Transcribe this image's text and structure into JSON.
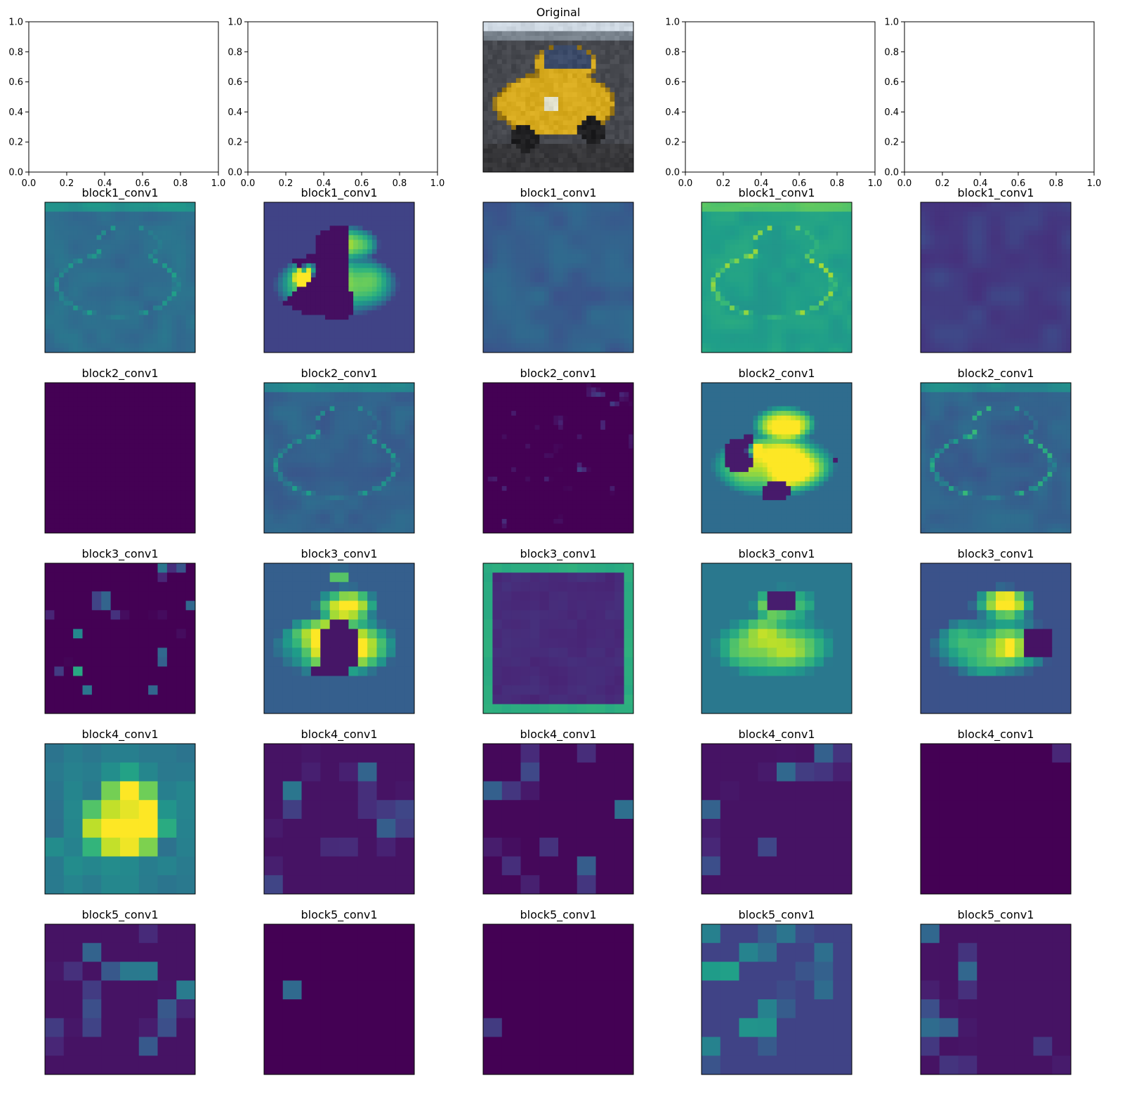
{
  "chart_data": {
    "type": "heatmap",
    "colormap": "viridis",
    "grid_columns": 5,
    "grid_rows": 6,
    "empty_axes": {
      "xlim": [
        0.0,
        1.0
      ],
      "ylim": [
        0.0,
        1.0
      ],
      "xticks": [
        "0.0",
        "0.2",
        "0.4",
        "0.6",
        "0.8",
        "1.0"
      ],
      "yticks": [
        "0.0",
        "0.2",
        "0.4",
        "0.6",
        "0.8",
        "1.0"
      ]
    },
    "original_title": "Original",
    "rows": [
      {
        "title": "block1_conv1",
        "panels": [
          {
            "pattern": "edges",
            "base": 0.35,
            "strength": 0.2,
            "hotspots": []
          },
          {
            "pattern": "blob",
            "base": 0.2,
            "strength": 0.9,
            "hotspots": [
              [
                0.25,
                0.5
              ],
              [
                0.3,
                0.45
              ]
            ]
          },
          {
            "pattern": "flat",
            "base": 0.3,
            "strength": 0.1,
            "hotspots": []
          },
          {
            "pattern": "edges",
            "base": 0.55,
            "strength": 0.3,
            "hotspots": []
          },
          {
            "pattern": "flat",
            "base": 0.18,
            "strength": 0.08,
            "hotspots": []
          }
        ]
      },
      {
        "title": "block2_conv1",
        "panels": [
          {
            "pattern": "flat",
            "base": 0.0,
            "strength": 0.0,
            "hotspots": []
          },
          {
            "pattern": "edges",
            "base": 0.3,
            "strength": 0.25,
            "hotspots": []
          },
          {
            "pattern": "sparse",
            "base": 0.0,
            "strength": 0.3,
            "hotspots": []
          },
          {
            "pattern": "blob",
            "base": 0.35,
            "strength": 0.8,
            "hotspots": [
              [
                0.35,
                0.45
              ],
              [
                0.6,
                0.3
              ]
            ]
          },
          {
            "pattern": "edges",
            "base": 0.3,
            "strength": 0.35,
            "hotspots": []
          }
        ]
      },
      {
        "title": "block3_conv1",
        "panels": [
          {
            "pattern": "sparse",
            "base": 0.0,
            "strength": 0.9,
            "hotspots": [
              [
                0.38,
                0.25
              ]
            ]
          },
          {
            "pattern": "blob",
            "base": 0.3,
            "strength": 0.7,
            "hotspots": [
              [
                0.5,
                0.08
              ]
            ]
          },
          {
            "pattern": "border",
            "base": 0.12,
            "strength": 0.5,
            "hotspots": []
          },
          {
            "pattern": "blob",
            "base": 0.4,
            "strength": 0.5,
            "hotspots": []
          },
          {
            "pattern": "blob",
            "base": 0.25,
            "strength": 0.7,
            "hotspots": [
              [
                0.6,
                0.55
              ]
            ]
          }
        ]
      },
      {
        "title": "block4_conv1",
        "panels": [
          {
            "pattern": "blocky",
            "base": 0.35,
            "strength": 0.8,
            "hotspots": [
              [
                0.7,
                0.45
              ],
              [
                0.1,
                0.65
              ]
            ]
          },
          {
            "pattern": "sparse_blocky",
            "base": 0.05,
            "strength": 0.6,
            "hotspots": [
              [
                0.2,
                0.35
              ]
            ]
          },
          {
            "pattern": "sparse_blocky",
            "base": 0.02,
            "strength": 0.6,
            "hotspots": [
              [
                0.95,
                0.4
              ]
            ]
          },
          {
            "pattern": "sparse_blocky",
            "base": 0.05,
            "strength": 0.6,
            "hotspots": [
              [
                0.05,
                0.48
              ]
            ]
          },
          {
            "pattern": "flat",
            "base": 0.0,
            "strength": 0.0,
            "hotspots": [
              [
                0.97,
                0.02
              ]
            ]
          }
        ]
      },
      {
        "title": "block5_conv1",
        "panels": [
          {
            "pattern": "sparse_blocky",
            "base": 0.05,
            "strength": 0.7,
            "hotspots": [
              [
                0.93,
                0.4
              ],
              [
                0.5,
                0.2
              ]
            ]
          },
          {
            "pattern": "flat",
            "base": 0.0,
            "strength": 0.0,
            "hotspots": [
              [
                0.2,
                0.4
              ],
              [
                0.25,
                0.4
              ]
            ]
          },
          {
            "pattern": "flat",
            "base": 0.0,
            "strength": 0.0,
            "hotspots": [
              [
                0.03,
                0.65
              ]
            ]
          },
          {
            "pattern": "sparse_blocky",
            "base": 0.2,
            "strength": 0.7,
            "hotspots": [
              [
                0.03,
                0.03
              ]
            ]
          },
          {
            "pattern": "sparse_blocky",
            "base": 0.05,
            "strength": 0.5,
            "hotspots": [
              [
                0.03,
                0.03
              ]
            ]
          }
        ]
      }
    ]
  }
}
